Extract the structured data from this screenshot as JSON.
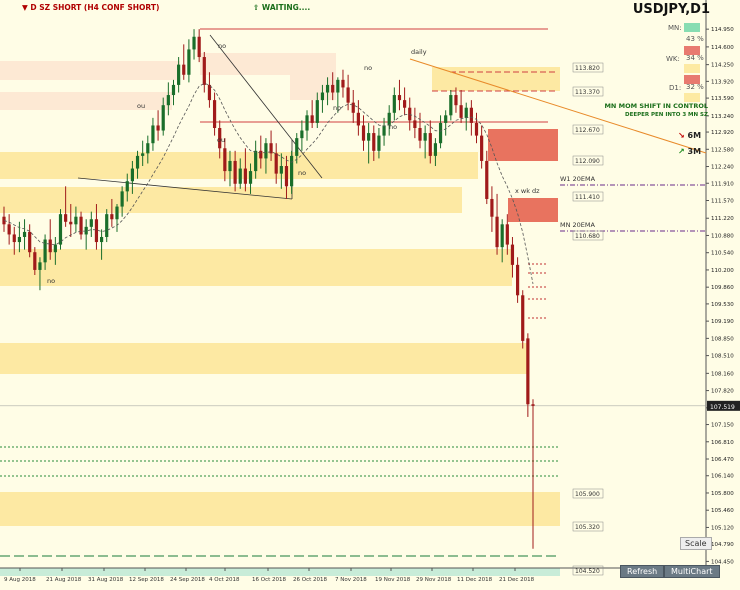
{
  "header": {
    "d_sz_short": "D SZ SHORT (H4 CONF SHORT)",
    "waiting": "WAITING....",
    "symbol": "USDJPY,D1",
    "mn_label": "MN:",
    "mn_pct": "43 %",
    "wk_label": "WK:",
    "wk_pct": "34 %",
    "d1_label": "D1:",
    "d1_pct": "32 %",
    "mom1": "MN MOM SHIFT IN CONTROL",
    "mom2": "DEEPER PEN INTO 3 MN SZ",
    "arrow6m": "6M",
    "arrow3m": "3M",
    "colors": {
      "mn": "#88ddb2",
      "wk": "#e87a70",
      "d1": "#fdeaa3"
    }
  },
  "buttons": {
    "scale": "Scale",
    "refresh": "Refresh",
    "multichart": "MultiChart"
  },
  "chart_data": {
    "type": "candlestick",
    "symbol": "USDJPY",
    "timeframe": "D1",
    "x_ticks": [
      "9 Aug 2018",
      "21 Aug 2018",
      "31 Aug 2018",
      "12 Sep 2018",
      "24 Sep 2018",
      "4 Oct 2018",
      "16 Oct 2018",
      "26 Oct 2018",
      "7 Nov 2018",
      "19 Nov 2018",
      "29 Nov 2018",
      "11 Dec 2018",
      "21 Dec 2018"
    ],
    "y_ticks": [
      114.95,
      114.6,
      114.25,
      113.92,
      113.59,
      113.24,
      112.92,
      112.58,
      112.24,
      111.91,
      111.57,
      111.22,
      110.88,
      110.54,
      110.2,
      109.86,
      109.53,
      109.19,
      108.85,
      108.51,
      108.16,
      107.82,
      107.48,
      107.15,
      106.81,
      106.47,
      106.14,
      105.8,
      105.46,
      105.12,
      104.79,
      104.45
    ],
    "ylim": [
      104.32,
      115.17
    ],
    "current_price": "107.519",
    "price_levels": [
      "113.820",
      "113.370",
      "112.670",
      "112.090",
      "111.410",
      "110.680",
      "105.900",
      "105.320",
      "104.520"
    ],
    "annotations": [
      "W1 20EMA",
      "MN 20EMA",
      "daily",
      "x wk dz",
      "no",
      "ou"
    ],
    "candles_ohlc": [
      [
        111.25,
        111.45,
        110.95,
        111.1
      ],
      [
        111.1,
        111.3,
        110.7,
        110.9
      ],
      [
        110.9,
        111.05,
        110.5,
        110.75
      ],
      [
        110.75,
        111.15,
        110.55,
        110.85
      ],
      [
        110.85,
        111.2,
        110.6,
        110.95
      ],
      [
        110.95,
        111.1,
        110.45,
        110.55
      ],
      [
        110.55,
        110.65,
        110.1,
        110.2
      ],
      [
        110.2,
        110.45,
        109.8,
        110.35
      ],
      [
        110.35,
        110.9,
        110.2,
        110.8
      ],
      [
        110.8,
        111.2,
        110.4,
        110.55
      ],
      [
        110.55,
        110.85,
        110.3,
        110.7
      ],
      [
        110.7,
        111.4,
        110.6,
        111.3
      ],
      [
        111.3,
        111.85,
        111.05,
        111.15
      ],
      [
        111.15,
        111.5,
        110.85,
        111.1
      ],
      [
        111.1,
        111.45,
        110.95,
        111.25
      ],
      [
        111.25,
        111.35,
        110.8,
        110.9
      ],
      [
        110.9,
        111.2,
        110.6,
        111.05
      ],
      [
        111.05,
        111.35,
        110.85,
        111.2
      ],
      [
        111.2,
        111.5,
        110.6,
        110.75
      ],
      [
        110.75,
        111.0,
        110.4,
        110.85
      ],
      [
        110.85,
        111.4,
        110.75,
        111.3
      ],
      [
        111.3,
        111.6,
        111.05,
        111.2
      ],
      [
        111.2,
        111.5,
        110.95,
        111.45
      ],
      [
        111.45,
        111.85,
        111.25,
        111.75
      ],
      [
        111.75,
        112.1,
        111.55,
        111.95
      ],
      [
        111.95,
        112.35,
        111.7,
        112.2
      ],
      [
        112.2,
        112.55,
        112.0,
        112.45
      ],
      [
        112.45,
        112.75,
        112.25,
        112.5
      ],
      [
        112.5,
        112.85,
        112.3,
        112.7
      ],
      [
        112.7,
        113.2,
        112.55,
        113.05
      ],
      [
        113.05,
        113.35,
        112.75,
        112.95
      ],
      [
        112.95,
        113.6,
        112.85,
        113.45
      ],
      [
        113.45,
        113.9,
        113.25,
        113.65
      ],
      [
        113.65,
        113.95,
        113.45,
        113.85
      ],
      [
        113.85,
        114.4,
        113.7,
        114.25
      ],
      [
        114.25,
        114.65,
        113.95,
        114.05
      ],
      [
        114.05,
        114.75,
        113.9,
        114.55
      ],
      [
        114.55,
        114.95,
        114.35,
        114.8
      ],
      [
        114.8,
        114.95,
        114.3,
        114.4
      ],
      [
        114.4,
        114.5,
        113.7,
        113.85
      ],
      [
        113.85,
        114.1,
        113.4,
        113.55
      ],
      [
        113.55,
        113.7,
        112.85,
        113.0
      ],
      [
        113.0,
        113.15,
        112.4,
        112.6
      ],
      [
        112.6,
        112.8,
        111.95,
        112.15
      ],
      [
        112.15,
        112.55,
        111.85,
        112.35
      ],
      [
        112.35,
        112.55,
        111.75,
        111.9
      ],
      [
        111.9,
        112.4,
        111.8,
        112.2
      ],
      [
        112.2,
        112.6,
        111.75,
        111.9
      ],
      [
        111.9,
        112.3,
        111.7,
        112.15
      ],
      [
        112.15,
        112.75,
        112.0,
        112.55
      ],
      [
        112.55,
        112.85,
        112.2,
        112.4
      ],
      [
        112.4,
        112.8,
        112.1,
        112.7
      ],
      [
        112.7,
        112.95,
        112.35,
        112.5
      ],
      [
        112.5,
        112.7,
        111.9,
        112.1
      ],
      [
        112.1,
        112.5,
        111.8,
        112.25
      ],
      [
        112.25,
        112.45,
        111.6,
        111.85
      ],
      [
        111.85,
        112.55,
        111.7,
        112.45
      ],
      [
        112.45,
        112.9,
        112.3,
        112.8
      ],
      [
        112.8,
        113.15,
        112.55,
        112.95
      ],
      [
        112.95,
        113.35,
        112.75,
        113.25
      ],
      [
        113.25,
        113.55,
        113.0,
        113.1
      ],
      [
        113.1,
        113.7,
        113.0,
        113.55
      ],
      [
        113.55,
        113.85,
        113.3,
        113.7
      ],
      [
        113.7,
        114.0,
        113.45,
        113.85
      ],
      [
        113.85,
        114.1,
        113.55,
        113.7
      ],
      [
        113.7,
        114.0,
        113.3,
        113.95
      ],
      [
        113.95,
        114.15,
        113.6,
        113.8
      ],
      [
        113.8,
        114.05,
        113.35,
        113.5
      ],
      [
        113.5,
        113.75,
        113.1,
        113.3
      ],
      [
        113.3,
        113.55,
        112.85,
        113.05
      ],
      [
        113.05,
        113.25,
        112.55,
        112.75
      ],
      [
        112.75,
        113.1,
        112.3,
        112.9
      ],
      [
        112.9,
        113.05,
        112.35,
        112.55
      ],
      [
        112.55,
        113.0,
        112.4,
        112.85
      ],
      [
        112.85,
        113.2,
        112.65,
        113.05
      ],
      [
        113.05,
        113.45,
        112.85,
        113.3
      ],
      [
        113.3,
        113.8,
        113.15,
        113.65
      ],
      [
        113.65,
        113.95,
        113.35,
        113.55
      ],
      [
        113.55,
        113.8,
        113.25,
        113.4
      ],
      [
        113.4,
        113.6,
        112.95,
        113.15
      ],
      [
        113.15,
        113.4,
        112.8,
        113.0
      ],
      [
        113.0,
        113.3,
        112.6,
        112.75
      ],
      [
        112.75,
        113.05,
        112.4,
        112.9
      ],
      [
        112.9,
        113.15,
        112.3,
        112.45
      ],
      [
        112.45,
        112.8,
        112.25,
        112.7
      ],
      [
        112.7,
        113.25,
        112.6,
        113.1
      ],
      [
        113.1,
        113.35,
        112.85,
        113.25
      ],
      [
        113.25,
        113.75,
        113.15,
        113.65
      ],
      [
        113.65,
        113.8,
        113.3,
        113.45
      ],
      [
        113.45,
        113.75,
        113.1,
        113.2
      ],
      [
        113.2,
        113.5,
        112.95,
        113.4
      ],
      [
        113.4,
        113.55,
        112.85,
        113.1
      ],
      [
        113.1,
        113.3,
        112.7,
        112.85
      ],
      [
        112.85,
        113.05,
        112.2,
        112.35
      ],
      [
        112.35,
        112.55,
        111.5,
        111.6
      ],
      [
        111.6,
        111.85,
        110.95,
        111.25
      ],
      [
        111.25,
        111.7,
        110.5,
        110.65
      ],
      [
        110.65,
        111.2,
        110.35,
        111.1
      ],
      [
        111.1,
        111.3,
        110.5,
        110.7
      ],
      [
        110.7,
        110.85,
        110.05,
        110.3
      ],
      [
        110.3,
        110.45,
        109.55,
        109.7
      ],
      [
        109.7,
        109.8,
        108.65,
        108.8
      ],
      [
        108.85,
        108.95,
        107.3,
        107.55
      ],
      [
        107.55,
        107.65,
        104.7,
        107.52
      ]
    ]
  }
}
